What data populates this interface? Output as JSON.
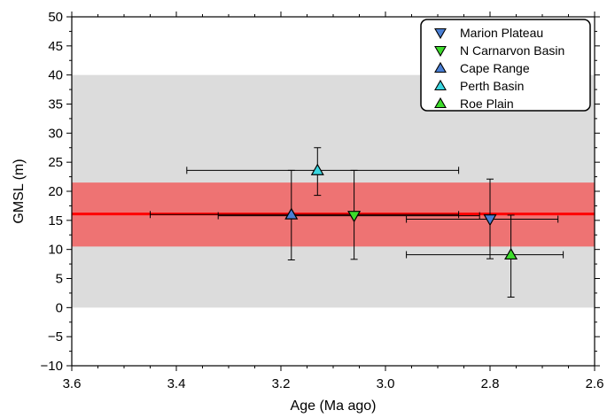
{
  "chart_data": {
    "type": "scatter",
    "title": "",
    "xlabel": "Age (Ma ago)",
    "ylabel": "GMSL (m)",
    "xlim": [
      3.6,
      2.6
    ],
    "ylim": [
      -10,
      50
    ],
    "x_ticks": [
      "3.6",
      "3.4",
      "3.2",
      "3.0",
      "2.8",
      "2.6"
    ],
    "y_ticks": [
      "−10",
      "−5",
      "0",
      "5",
      "10",
      "15",
      "20",
      "25",
      "30",
      "35",
      "40",
      "45",
      "50"
    ],
    "x_reversed": true,
    "grid": false,
    "legend_position": "top-right",
    "bands": [
      {
        "label": "",
        "y_min": 0,
        "y_max": 40,
        "color": "#dcdcdc"
      },
      {
        "label": "",
        "y_min": 10.5,
        "y_max": 21.5,
        "color": "#ee7373"
      }
    ],
    "reference_lines": [
      {
        "y": 16.1,
        "color": "#ff0000"
      }
    ],
    "series": [
      {
        "name": "Marion Plateau",
        "marker": "triangle-down",
        "color": "#4a7fd4",
        "points": [
          {
            "x": 2.8,
            "y": 15.2,
            "x_min": 2.67,
            "x_max": 2.96,
            "y_min": 8.4,
            "y_max": 22.1
          }
        ]
      },
      {
        "name": "N Carnarvon Basin",
        "marker": "triangle-down",
        "color": "#3ddc2b",
        "points": [
          {
            "x": 3.06,
            "y": 15.8,
            "x_min": 2.82,
            "x_max": 3.32,
            "y_min": 8.3,
            "y_max": 23.6
          }
        ]
      },
      {
        "name": "Cape Range",
        "marker": "triangle-up",
        "color": "#4a7fd4",
        "points": [
          {
            "x": 3.18,
            "y": 16.0,
            "x_min": 2.86,
            "x_max": 3.45,
            "y_min": 8.2,
            "y_max": 23.6
          }
        ]
      },
      {
        "name": "Perth Basin",
        "marker": "triangle-up",
        "color": "#39d6e0",
        "points": [
          {
            "x": 3.13,
            "y": 23.6,
            "x_min": 2.86,
            "x_max": 3.38,
            "y_min": 19.3,
            "y_max": 27.5
          }
        ]
      },
      {
        "name": "Roe Plain",
        "marker": "triangle-up",
        "color": "#3ddc2b",
        "points": [
          {
            "x": 2.76,
            "y": 9.1,
            "x_min": 2.66,
            "x_max": 2.96,
            "y_min": 1.8,
            "y_max": 15.9
          }
        ]
      }
    ]
  }
}
